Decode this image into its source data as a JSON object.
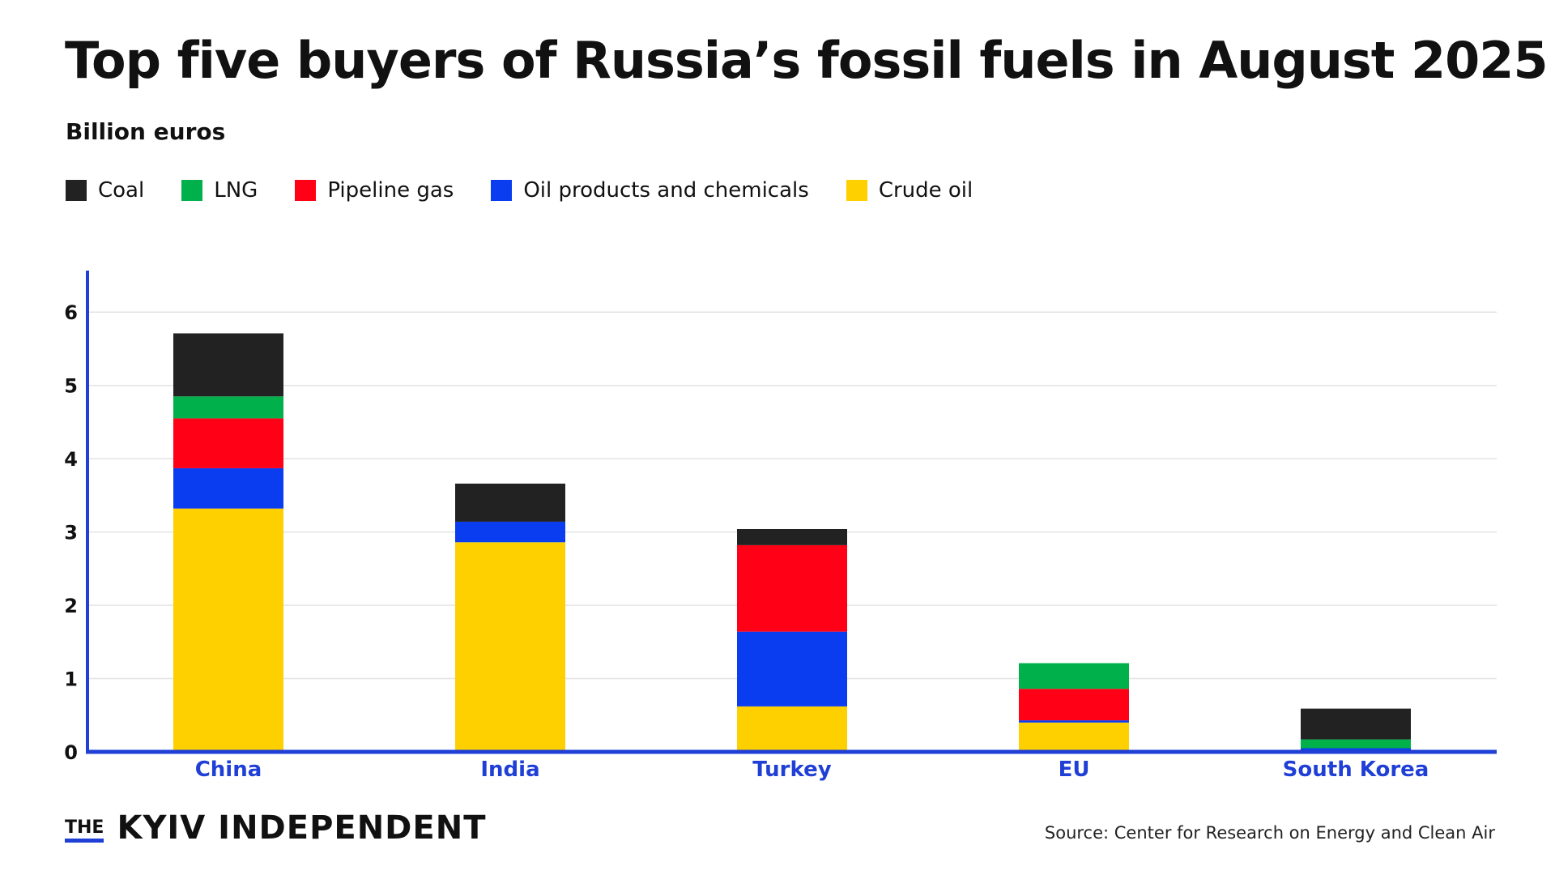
{
  "title": "Top five buyers of Russia’s fossil fuels in August 2025",
  "unit_label": "Billion euros",
  "legend": [
    {
      "label": "Coal",
      "color": "#222222"
    },
    {
      "label": "LNG",
      "color": "#00b04a"
    },
    {
      "label": "Pipeline gas",
      "color": "#ff0016"
    },
    {
      "label": "Oil products and chemicals",
      "color": "#0a3cf0"
    },
    {
      "label": "Crude oil",
      "color": "#ffd000"
    }
  ],
  "chart_data": {
    "type": "bar",
    "stacked": true,
    "title": "Top five buyers of Russia’s fossil fuels in August 2025",
    "ylabel": "Billion euros",
    "xlabel": "",
    "categories": [
      "China",
      "India",
      "Turkey",
      "EU",
      "South Korea"
    ],
    "yticks": [
      "0",
      "1",
      "2",
      "3",
      "4",
      "5",
      "6"
    ],
    "ylim": [
      0,
      6.5
    ],
    "grid": true,
    "legend_position": "top-left",
    "series": [
      {
        "name": "Crude oil",
        "color": "#ffd000",
        "values": [
          3.32,
          2.86,
          0.62,
          0.4,
          0.0
        ]
      },
      {
        "name": "Oil products and chemicals",
        "color": "#0a3cf0",
        "values": [
          0.55,
          0.28,
          1.02,
          0.03,
          0.05
        ]
      },
      {
        "name": "Pipeline gas",
        "color": "#ff0016",
        "values": [
          0.68,
          0.0,
          1.18,
          0.43,
          0.0
        ]
      },
      {
        "name": "LNG",
        "color": "#00b04a",
        "values": [
          0.3,
          0.0,
          0.0,
          0.35,
          0.12
        ]
      },
      {
        "name": "Coal",
        "color": "#222222",
        "values": [
          0.86,
          0.52,
          0.22,
          0.0,
          0.42
        ]
      }
    ]
  },
  "footer": {
    "brand_small": "THE",
    "brand_main": "KYIV INDEPENDENT",
    "source": "Source:  Center for Research on Energy and Clean Air"
  }
}
